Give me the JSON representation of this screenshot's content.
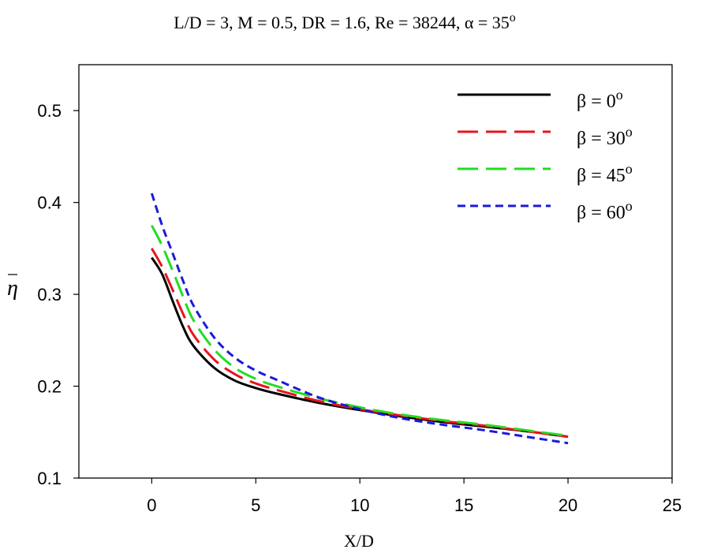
{
  "chart_data": {
    "type": "line",
    "title": "L/D = 3, M = 0.5, DR = 1.6, Re = 38244, α = 35",
    "title_superscript": "o",
    "xlabel": "X/D",
    "ylabel": "η",
    "xlim": [
      -3.5,
      25
    ],
    "ylim": [
      0.1,
      0.55
    ],
    "xticks": [
      0,
      5,
      10,
      15,
      20,
      25
    ],
    "yticks": [
      0.1,
      0.2,
      0.3,
      0.4,
      0.5
    ],
    "xtick_labels": [
      "0",
      "5",
      "10",
      "15",
      "20",
      "25"
    ],
    "ytick_labels": [
      "0.1",
      "0.2",
      "0.3",
      "0.4",
      "0.5"
    ],
    "grid": false,
    "legend_position": "top-right",
    "series": [
      {
        "name": "β = 0",
        "name_superscript": "o",
        "color": "#000000",
        "dash": "solid",
        "x": [
          0,
          0.5,
          1,
          1.5,
          2,
          3,
          4,
          5,
          6,
          8,
          10,
          12,
          14,
          16,
          18,
          20
        ],
        "y": [
          0.34,
          0.322,
          0.293,
          0.265,
          0.244,
          0.22,
          0.206,
          0.198,
          0.192,
          0.182,
          0.174,
          0.167,
          0.161,
          0.156,
          0.151,
          0.145
        ]
      },
      {
        "name": "β = 30",
        "name_superscript": "o",
        "color": "#e8141c",
        "dash": "long",
        "x": [
          0,
          0.5,
          1,
          1.5,
          2,
          3,
          4,
          5,
          6,
          8,
          10,
          12,
          14,
          16,
          18,
          20
        ],
        "y": [
          0.35,
          0.33,
          0.305,
          0.279,
          0.256,
          0.229,
          0.213,
          0.203,
          0.196,
          0.184,
          0.175,
          0.168,
          0.162,
          0.157,
          0.151,
          0.145
        ]
      },
      {
        "name": "β = 45",
        "name_superscript": "o",
        "color": "#22dd22",
        "dash": "long",
        "x": [
          0,
          0.5,
          1,
          1.5,
          2,
          3,
          4,
          5,
          6,
          8,
          10,
          12,
          14,
          16,
          18,
          20
        ],
        "y": [
          0.375,
          0.353,
          0.326,
          0.298,
          0.272,
          0.24,
          0.22,
          0.208,
          0.2,
          0.187,
          0.177,
          0.169,
          0.163,
          0.158,
          0.152,
          0.146
        ]
      },
      {
        "name": "β = 60",
        "name_superscript": "o",
        "color": "#1a1adb",
        "dash": "short",
        "x": [
          0,
          0.5,
          1,
          1.5,
          2,
          3,
          4,
          5,
          6,
          8,
          10,
          12,
          14,
          16,
          18,
          20
        ],
        "y": [
          0.41,
          0.375,
          0.345,
          0.315,
          0.288,
          0.253,
          0.231,
          0.217,
          0.207,
          0.188,
          0.175,
          0.165,
          0.158,
          0.152,
          0.145,
          0.138
        ]
      }
    ]
  }
}
